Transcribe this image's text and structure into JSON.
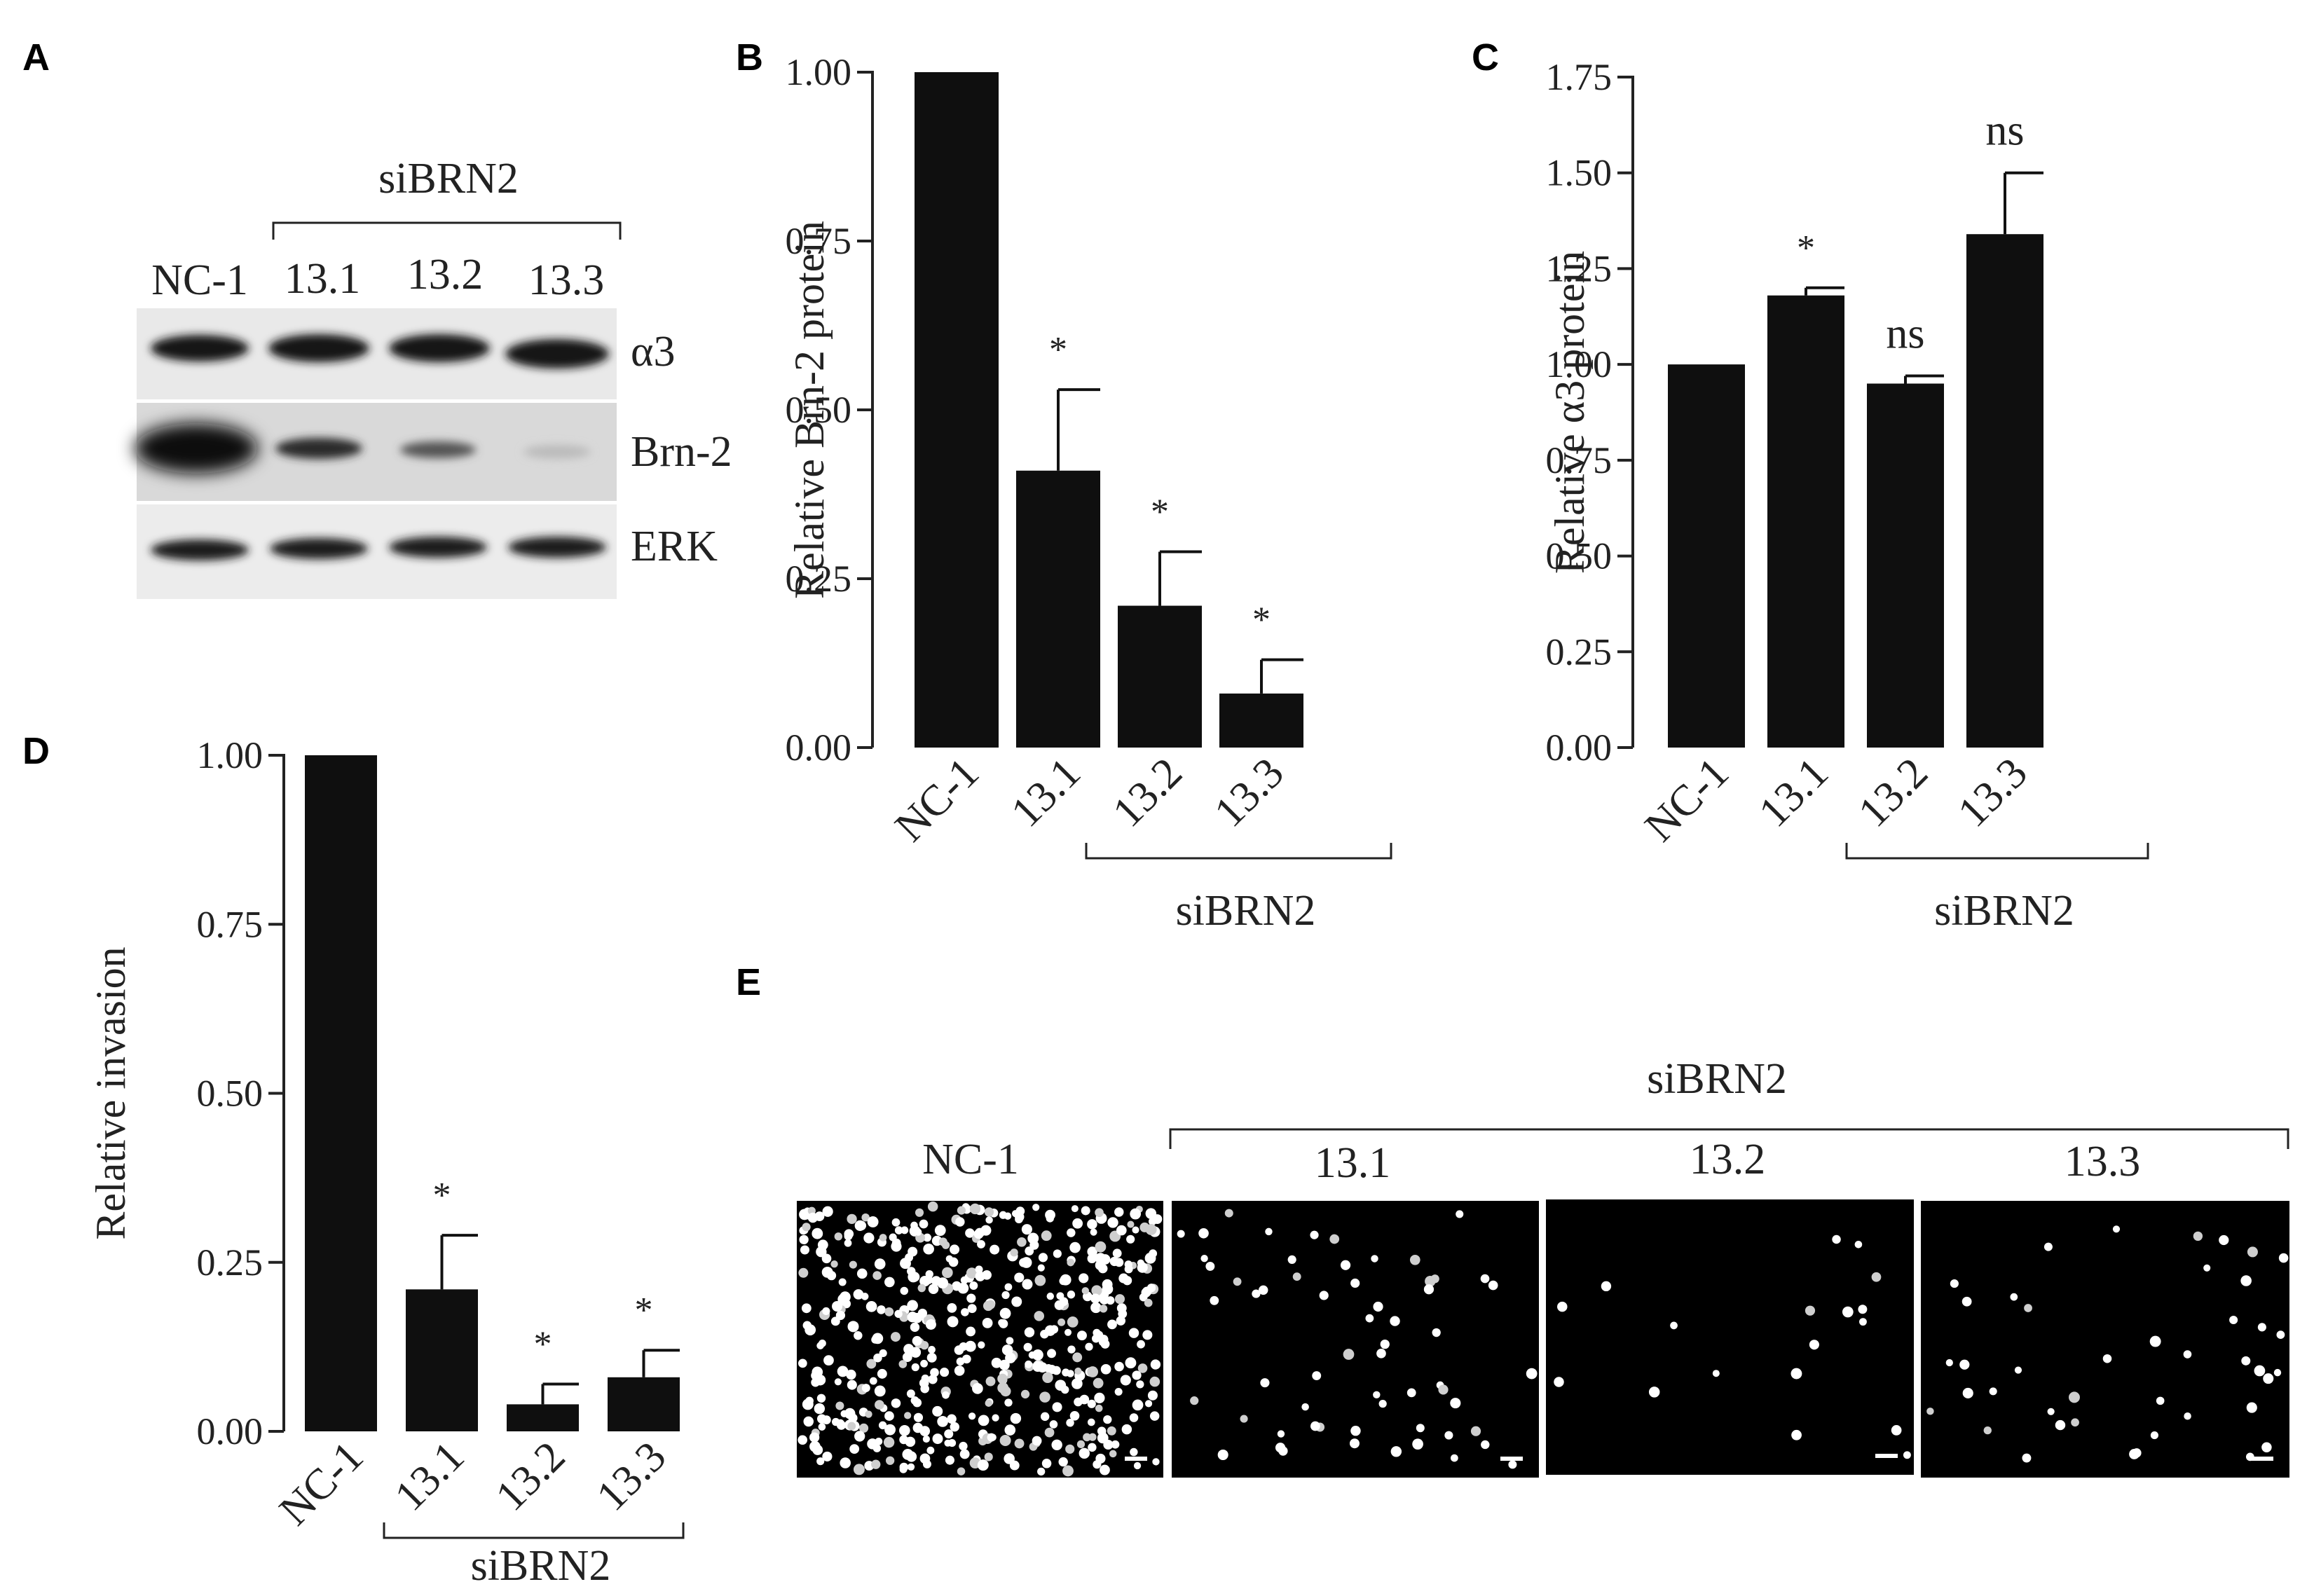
{
  "panels": {
    "A": {
      "label": "A",
      "group_label": "siBRN2",
      "lanes": [
        "NC-1",
        "13.1",
        "13.2",
        "13.3"
      ],
      "rows": [
        "α3",
        "Brn-2",
        "ERK"
      ]
    },
    "E": {
      "label": "E",
      "group_label": "siBRN2",
      "images": [
        "NC-1",
        "13.1",
        "13.2",
        "13.3"
      ]
    }
  },
  "chart_data": [
    {
      "id": "B",
      "panel_label": "B",
      "type": "bar",
      "ylabel": "Relative Brn-2 protein",
      "categories": [
        "NC-1",
        "13.1",
        "13.2",
        "13.3"
      ],
      "values": [
        1.0,
        0.41,
        0.21,
        0.08
      ],
      "errors": [
        0,
        0.12,
        0.08,
        0.05
      ],
      "annotations": [
        "",
        "*",
        "*",
        "*"
      ],
      "group_label": "siBRN2",
      "ylim": [
        0,
        1.0
      ],
      "yticks": [
        "0.00",
        "0.25",
        "0.50",
        "0.75",
        "1.00"
      ]
    },
    {
      "id": "C",
      "panel_label": "C",
      "type": "bar",
      "ylabel": "Relative α3 protein",
      "categories": [
        "NC-1",
        "13.1",
        "13.2",
        "13.3"
      ],
      "values": [
        1.0,
        1.18,
        0.95,
        1.34
      ],
      "errors": [
        0,
        0.02,
        0.02,
        0.16
      ],
      "annotations": [
        "",
        "*",
        "ns",
        "ns"
      ],
      "group_label": "siBRN2",
      "ylim": [
        0,
        1.75
      ],
      "yticks": [
        "0.00",
        "0.25",
        "0.50",
        "0.75",
        "1.00",
        "1.25",
        "1.50",
        "1.75"
      ]
    },
    {
      "id": "D",
      "panel_label": "D",
      "type": "bar",
      "ylabel": "Relative invasion",
      "categories": [
        "NC-1",
        "13.1",
        "13.2",
        "13.3"
      ],
      "values": [
        1.0,
        0.21,
        0.04,
        0.08
      ],
      "errors": [
        0,
        0.08,
        0.03,
        0.04
      ],
      "annotations": [
        "",
        "*",
        "*",
        "*"
      ],
      "group_label": "siBRN2",
      "ylim": [
        0,
        1.0
      ],
      "yticks": [
        "0.00",
        "0.25",
        "0.50",
        "0.75",
        "1.00"
      ]
    }
  ]
}
